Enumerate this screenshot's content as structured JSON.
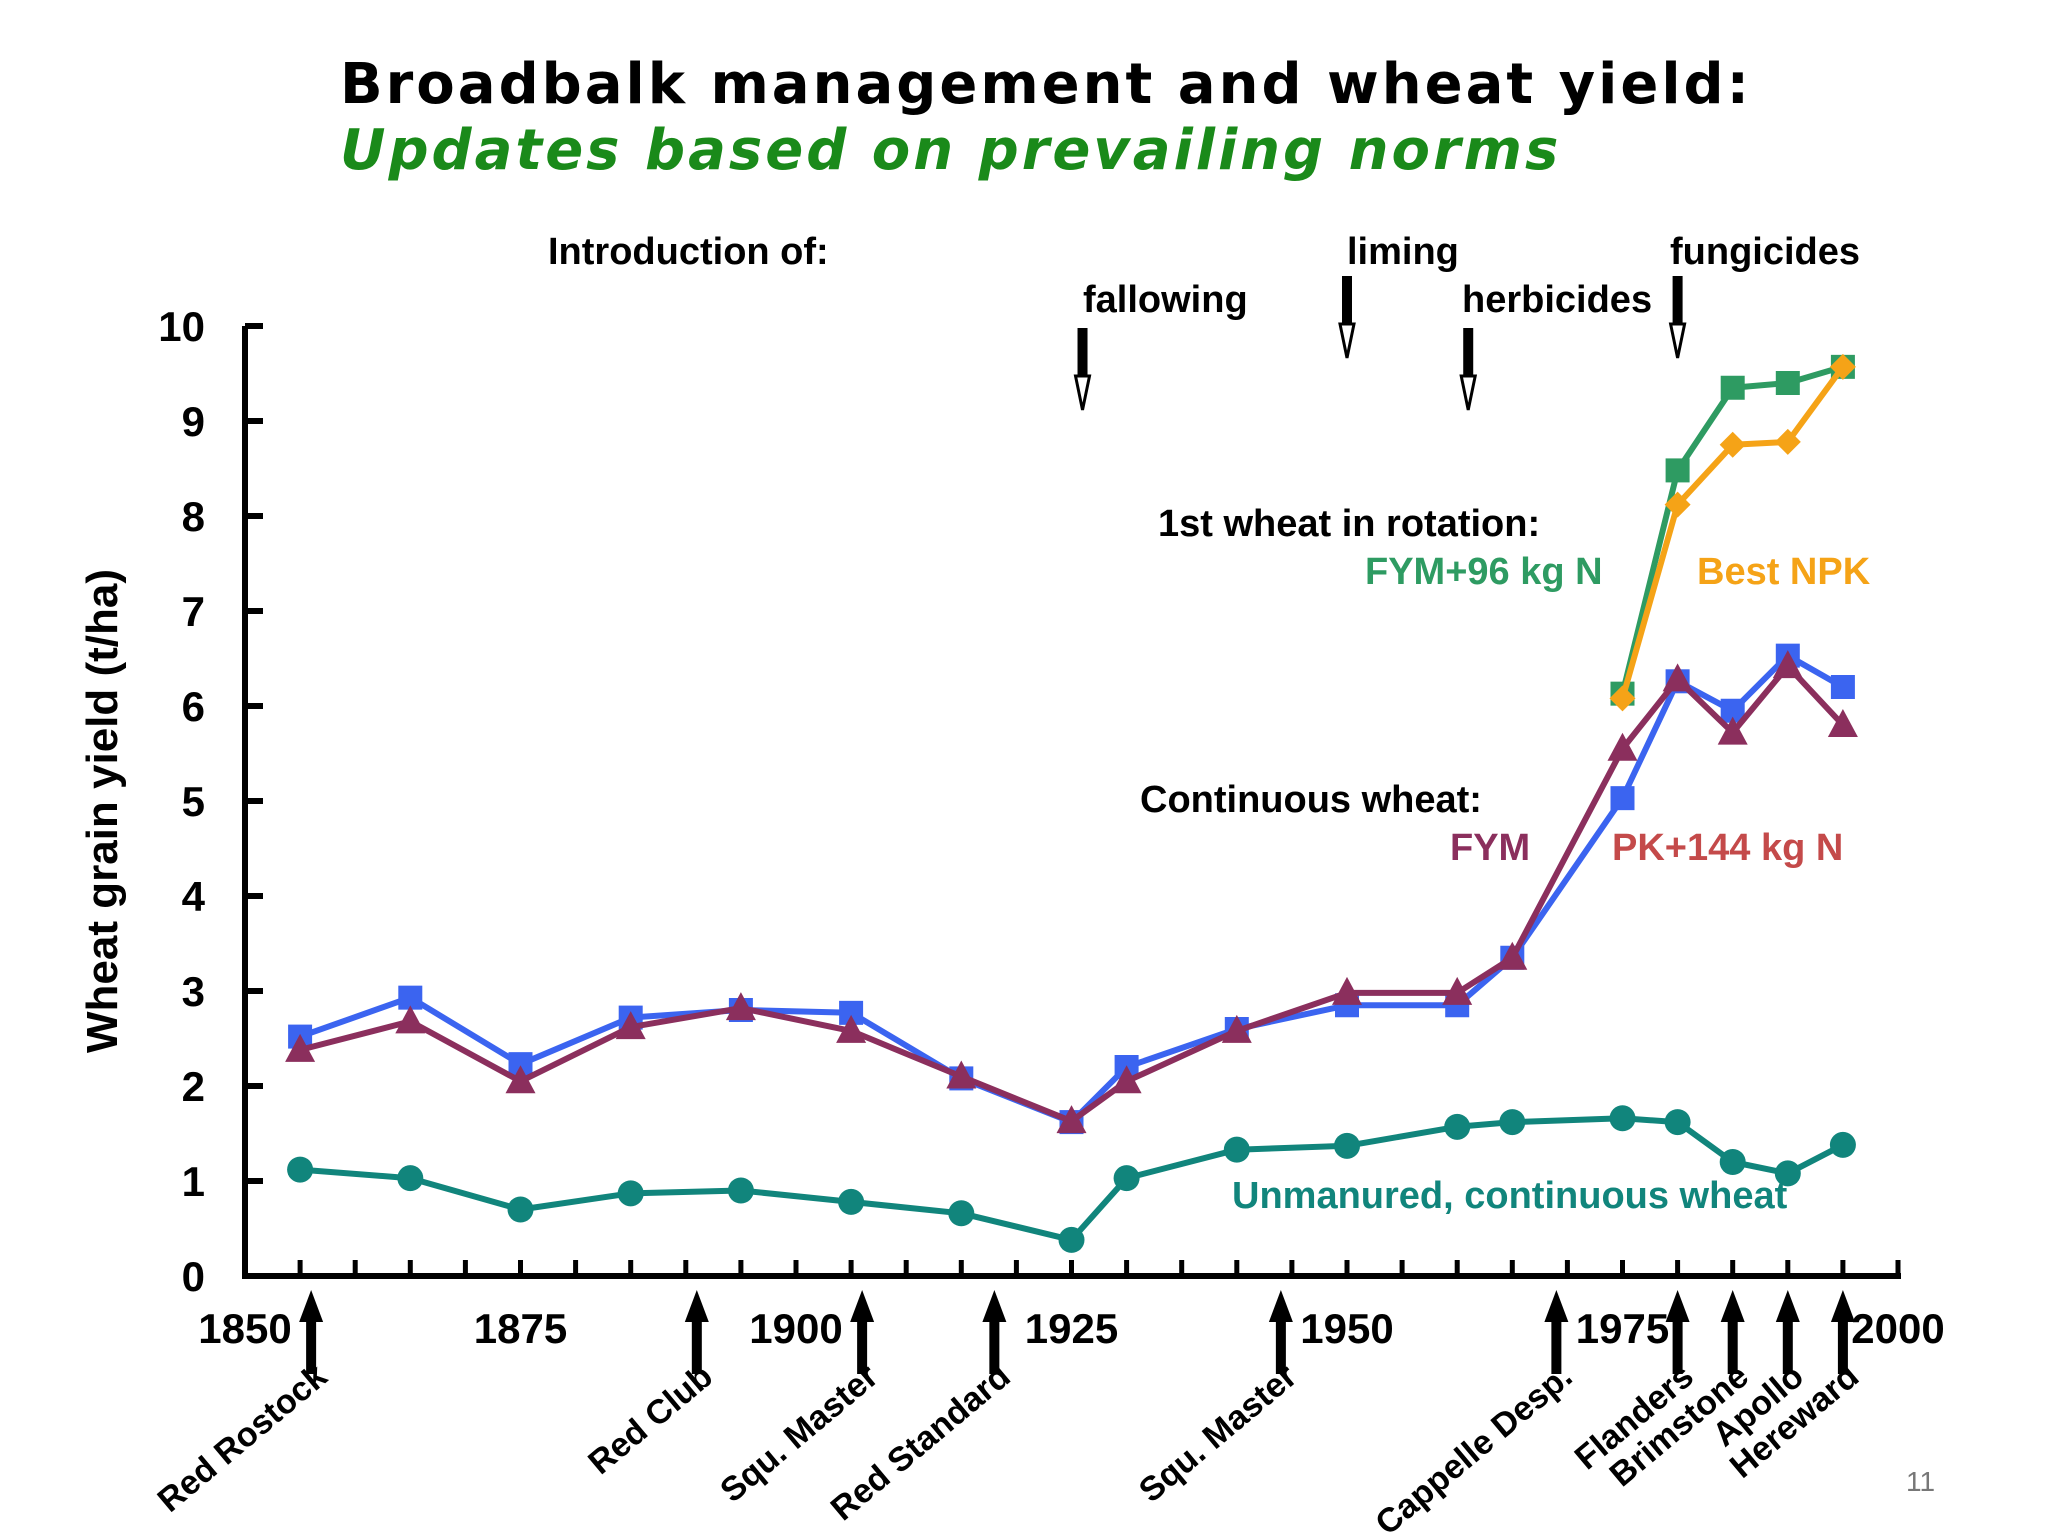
{
  "slide": {
    "title": "Broadbalk management and wheat yield:",
    "subtitle": "Updates based on prevailing norms",
    "page_number": "11"
  },
  "colors": {
    "title": "#000000",
    "subtitle": "#1a8a1a",
    "fym_rotation": "#2e9b62",
    "best_npk": "#f5a317",
    "fym_continuous": "#8b2f5d",
    "pk144": "#3b64f0",
    "unmanured": "#11857c"
  },
  "chart_data": {
    "type": "line",
    "title": "",
    "xlabel": "",
    "ylabel": "Wheat grain yield (t/ha)",
    "xlim": [
      1850,
      2000
    ],
    "ylim": [
      0,
      10
    ],
    "x_ticks": [
      1850,
      1875,
      1900,
      1925,
      1950,
      1975,
      2000
    ],
    "y_ticks": [
      0,
      1,
      2,
      3,
      4,
      5,
      6,
      7,
      8,
      9,
      10
    ],
    "grid": false,
    "series": [
      {
        "name": "PK+144 kg N",
        "color": "#3b64f0",
        "marker": "square",
        "points": [
          [
            1855,
            2.52
          ],
          [
            1865,
            2.93
          ],
          [
            1875,
            2.23
          ],
          [
            1885,
            2.72
          ],
          [
            1895,
            2.8
          ],
          [
            1905,
            2.77
          ],
          [
            1915,
            2.08
          ],
          [
            1925,
            1.62
          ],
          [
            1930,
            2.2
          ],
          [
            1940,
            2.6
          ],
          [
            1950,
            2.85
          ],
          [
            1960,
            2.85
          ],
          [
            1965,
            3.35
          ],
          [
            1975,
            5.03
          ],
          [
            1980,
            6.26
          ],
          [
            1985,
            5.95
          ],
          [
            1990,
            6.53
          ],
          [
            1995,
            6.2
          ]
        ]
      },
      {
        "name": "FYM",
        "color": "#8b2f5d",
        "marker": "triangle",
        "points": [
          [
            1855,
            2.38
          ],
          [
            1865,
            2.68
          ],
          [
            1875,
            2.05
          ],
          [
            1885,
            2.62
          ],
          [
            1895,
            2.82
          ],
          [
            1905,
            2.58
          ],
          [
            1915,
            2.1
          ],
          [
            1925,
            1.63
          ],
          [
            1930,
            2.05
          ],
          [
            1940,
            2.58
          ],
          [
            1950,
            2.98
          ],
          [
            1960,
            2.98
          ],
          [
            1965,
            3.35
          ],
          [
            1975,
            5.55
          ],
          [
            1980,
            6.28
          ],
          [
            1985,
            5.72
          ],
          [
            1990,
            6.42
          ],
          [
            1995,
            5.8
          ]
        ]
      },
      {
        "name": "FYM+96 kg N",
        "color": "#2e9b62",
        "marker": "square",
        "points": [
          [
            1975,
            6.13
          ],
          [
            1980,
            8.48
          ],
          [
            1985,
            9.35
          ],
          [
            1990,
            9.4
          ],
          [
            1995,
            9.57
          ]
        ]
      },
      {
        "name": "Best NPK",
        "color": "#f5a317",
        "marker": "diamond",
        "points": [
          [
            1975,
            6.08
          ],
          [
            1980,
            8.12
          ],
          [
            1985,
            8.75
          ],
          [
            1990,
            8.78
          ],
          [
            1995,
            9.57
          ]
        ]
      },
      {
        "name": "Unmanured, continuous wheat",
        "color": "#11857c",
        "marker": "circle",
        "points": [
          [
            1855,
            1.12
          ],
          [
            1865,
            1.03
          ],
          [
            1875,
            0.7
          ],
          [
            1885,
            0.87
          ],
          [
            1895,
            0.9
          ],
          [
            1905,
            0.78
          ],
          [
            1915,
            0.66
          ],
          [
            1925,
            0.38
          ],
          [
            1930,
            1.03
          ],
          [
            1940,
            1.33
          ],
          [
            1950,
            1.37
          ],
          [
            1960,
            1.57
          ],
          [
            1965,
            1.62
          ],
          [
            1975,
            1.66
          ],
          [
            1980,
            1.62
          ],
          [
            1985,
            1.2
          ],
          [
            1990,
            1.08
          ],
          [
            1995,
            1.38
          ]
        ]
      }
    ],
    "annotations": {
      "intro_label": "Introduction of:",
      "management_events": [
        {
          "label": "fallowing",
          "x": 1926
        },
        {
          "label": "liming",
          "x": 1950
        },
        {
          "label": "herbicides",
          "x": 1961
        },
        {
          "label": "fungicides",
          "x": 1980
        }
      ],
      "rotation_heading": "1st wheat in rotation:",
      "rotation_fym_label": "FYM+96 kg N",
      "rotation_npk_label": "Best NPK",
      "continuous_heading": "Continuous wheat:",
      "continuous_fym_label": "FYM",
      "continuous_pk_label": "PK+144 kg N",
      "unmanured_label": "Unmanured, continuous wheat"
    },
    "varieties": [
      {
        "name": "Red Rostock",
        "x": 1856
      },
      {
        "name": "Red Club",
        "x": 1891
      },
      {
        "name": "Squ. Master",
        "x": 1906
      },
      {
        "name": "Red Standard",
        "x": 1918
      },
      {
        "name": "Squ. Master",
        "x": 1944
      },
      {
        "name": "Cappelle Desp.",
        "x": 1969
      },
      {
        "name": "Flanders",
        "x": 1980
      },
      {
        "name": "Brimstone",
        "x": 1985
      },
      {
        "name": "Apollo",
        "x": 1990
      },
      {
        "name": "Hereward",
        "x": 1995
      }
    ]
  }
}
